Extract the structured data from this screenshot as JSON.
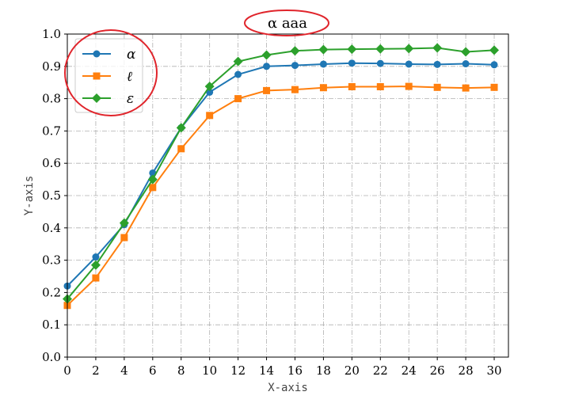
{
  "chart_data": {
    "type": "line",
    "title": "α aaa",
    "xlabel": "X-axis",
    "ylabel": "Y-axis",
    "xlim": [
      0,
      31
    ],
    "ylim": [
      0.0,
      1.0
    ],
    "x_ticks": [
      "0",
      "2",
      "4",
      "6",
      "8",
      "10",
      "12",
      "14",
      "16",
      "18",
      "20",
      "22",
      "24",
      "26",
      "28",
      "30"
    ],
    "y_ticks": [
      "0.0",
      "0.1",
      "0.2",
      "0.3",
      "0.4",
      "0.5",
      "0.6",
      "0.7",
      "0.8",
      "0.9",
      "1.0"
    ],
    "grid": true,
    "legend_position": "top-left",
    "x": [
      0,
      2,
      4,
      6,
      8,
      10,
      12,
      14,
      16,
      18,
      20,
      22,
      24,
      26,
      28,
      30
    ],
    "series": [
      {
        "name": "α",
        "color": "#1f77b4",
        "marker": "circle",
        "values": [
          0.22,
          0.31,
          0.41,
          0.57,
          0.71,
          0.82,
          0.875,
          0.9,
          0.903,
          0.907,
          0.91,
          0.909,
          0.907,
          0.906,
          0.908,
          0.905
        ]
      },
      {
        "name": "ℓ",
        "color": "#ff7f0e",
        "marker": "square",
        "values": [
          0.16,
          0.245,
          0.37,
          0.525,
          0.645,
          0.748,
          0.8,
          0.825,
          0.828,
          0.834,
          0.837,
          0.837,
          0.838,
          0.835,
          0.833,
          0.835
        ]
      },
      {
        "name": "ε",
        "color": "#2ca02c",
        "marker": "diamond",
        "values": [
          0.18,
          0.285,
          0.415,
          0.55,
          0.71,
          0.838,
          0.915,
          0.935,
          0.948,
          0.952,
          0.953,
          0.954,
          0.955,
          0.957,
          0.945,
          0.95
        ]
      }
    ],
    "annotation_color": "#e0242b"
  }
}
